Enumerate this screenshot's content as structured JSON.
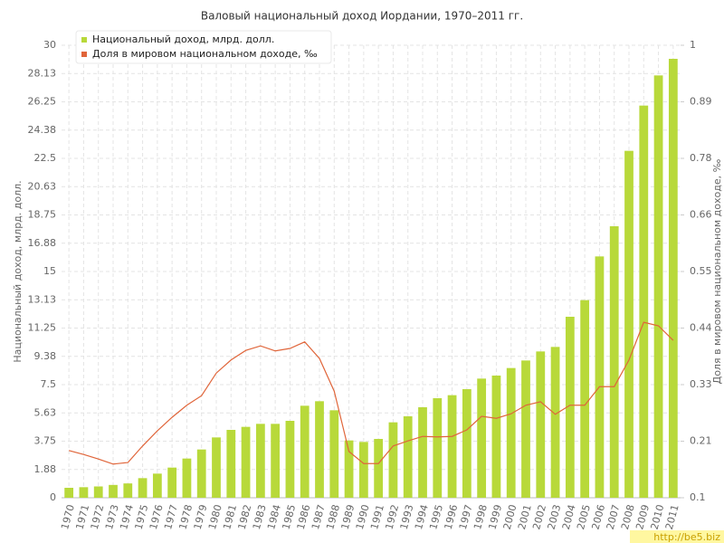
{
  "chart_data": {
    "type": "bar-line",
    "title": "Валовый национальный доход Иордании, 1970–2011 гг.",
    "y_label": "Национальный доход, млрд. долл.",
    "y2_label": "Доля в мировом национальном доходе, ‰",
    "footer": "http://be5.biz",
    "legend_position": "upper left",
    "grid": true,
    "categories": [
      "1970",
      "1971",
      "1972",
      "1973",
      "1974",
      "1975",
      "1976",
      "1977",
      "1978",
      "1979",
      "1980",
      "1981",
      "1982",
      "1983",
      "1984",
      "1985",
      "1986",
      "1987",
      "1988",
      "1989",
      "1990",
      "1991",
      "1992",
      "1993",
      "1994",
      "1995",
      "1996",
      "1997",
      "1998",
      "1999",
      "2000",
      "2001",
      "2002",
      "2003",
      "2004",
      "2005",
      "2006",
      "2007",
      "2008",
      "2009",
      "2010",
      "2011"
    ],
    "series": [
      {
        "name": "Национальный доход, млрд. долл.",
        "type": "bar",
        "color": "#b8d93a",
        "values": [
          0.66,
          0.7,
          0.75,
          0.85,
          0.95,
          1.3,
          1.6,
          2.0,
          2.6,
          3.2,
          4.0,
          4.5,
          4.7,
          4.9,
          4.9,
          5.1,
          6.1,
          6.4,
          5.8,
          3.8,
          3.7,
          3.9,
          5.0,
          5.4,
          6.0,
          6.6,
          6.8,
          7.2,
          7.9,
          8.1,
          8.6,
          9.1,
          9.7,
          10.0,
          12.0,
          13.1,
          16.0,
          18.0,
          23.0,
          26.0,
          28.0,
          29.1
        ]
      },
      {
        "name": "Доля в мировом национальном доходе, ‰",
        "type": "line",
        "axis": "y2",
        "color": "#e0653a",
        "values": [
          0.194,
          0.186,
          0.177,
          0.167,
          0.17,
          0.203,
          0.233,
          0.26,
          0.284,
          0.303,
          0.348,
          0.374,
          0.393,
          0.402,
          0.392,
          0.397,
          0.41,
          0.377,
          0.312,
          0.192,
          0.168,
          0.168,
          0.203,
          0.213,
          0.222,
          0.221,
          0.222,
          0.235,
          0.262,
          0.258,
          0.267,
          0.284,
          0.291,
          0.266,
          0.284,
          0.284,
          0.321,
          0.321,
          0.374,
          0.449,
          0.442,
          0.413
        ]
      }
    ],
    "ylim": [
      0,
      30
    ],
    "yticks": [
      0,
      {
        "value": 1.875,
        "label": "1.88"
      },
      3.75,
      {
        "value": 5.625,
        "label": "5.63"
      },
      7.5,
      {
        "value": 9.375,
        "label": "9.38"
      },
      11.25,
      {
        "value": 13.125,
        "label": "13.13"
      },
      15,
      {
        "value": 16.875,
        "label": "16.88"
      },
      18.75,
      {
        "value": 20.625,
        "label": "20.63"
      },
      22.5,
      {
        "value": 24.375,
        "label": "24.38"
      },
      26.25,
      {
        "value": 28.125,
        "label": "28.13"
      },
      30
    ],
    "y2lim": [
      0.1,
      1
    ],
    "y2ticks": [
      0.1,
      {
        "value": 0.2125,
        "label": "0.21"
      },
      {
        "value": 0.325,
        "label": "0.33"
      },
      {
        "value": 0.4375,
        "label": "0.44"
      },
      0.55,
      {
        "value": 0.6625,
        "label": "0.66"
      },
      {
        "value": 0.775,
        "label": "0.78"
      },
      {
        "value": 0.8875,
        "label": "0.89"
      },
      1
    ]
  }
}
